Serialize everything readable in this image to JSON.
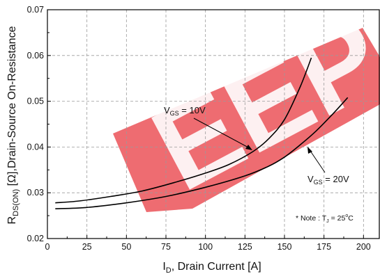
{
  "chart_data": {
    "type": "line",
    "xlabel_parts": [
      "I",
      "D",
      ", Drain Current [A]"
    ],
    "ylabel_parts": [
      "R",
      "DS(ON)",
      " [Ω],Drain-Source On-Resistance"
    ],
    "xlim": [
      0,
      210
    ],
    "ylim": [
      0.02,
      0.07
    ],
    "x_ticks": [
      0,
      25,
      50,
      75,
      100,
      125,
      150,
      175,
      200
    ],
    "y_ticks": [
      0.02,
      0.03,
      0.04,
      0.05,
      0.06,
      0.07
    ],
    "x_tick_labels": [
      "0",
      "25",
      "50",
      "75",
      "100",
      "125",
      "150",
      "175",
      "200"
    ],
    "y_tick_labels": [
      "0.02",
      "0.03",
      "0.04",
      "0.05",
      "0.06",
      "0.07"
    ],
    "grid": true,
    "series": [
      {
        "name": "VGS = 10V",
        "color": "#000000",
        "points": [
          [
            5,
            0.0278
          ],
          [
            20,
            0.0282
          ],
          [
            40,
            0.0292
          ],
          [
            60,
            0.0304
          ],
          [
            80,
            0.0322
          ],
          [
            100,
            0.0343
          ],
          [
            115,
            0.0362
          ],
          [
            130,
            0.039
          ],
          [
            140,
            0.0418
          ],
          [
            150,
            0.046
          ],
          [
            160,
            0.0532
          ],
          [
            167,
            0.0595
          ]
        ]
      },
      {
        "name": "VGS = 20V",
        "color": "#000000",
        "points": [
          [
            5,
            0.0265
          ],
          [
            25,
            0.0268
          ],
          [
            50,
            0.0278
          ],
          [
            75,
            0.0292
          ],
          [
            100,
            0.0312
          ],
          [
            125,
            0.0337
          ],
          [
            140,
            0.0358
          ],
          [
            150,
            0.0378
          ],
          [
            160,
            0.0405
          ],
          [
            170,
            0.0435
          ],
          [
            180,
            0.047
          ],
          [
            190,
            0.0508
          ]
        ]
      }
    ],
    "annotations": {
      "vgs10": {
        "prefix": "V",
        "sub": "GS",
        "suffix": " = 10V"
      },
      "vgs20": {
        "prefix": "V",
        "sub": "GS",
        "suffix": " = 20V"
      },
      "note": {
        "prefix": "* Note : T",
        "sub": "J",
        "mid": " = 25",
        "sup": "o",
        "suffix": "C"
      }
    }
  },
  "watermark": {
    "text": "EEPW",
    "color": "#e8333a"
  }
}
